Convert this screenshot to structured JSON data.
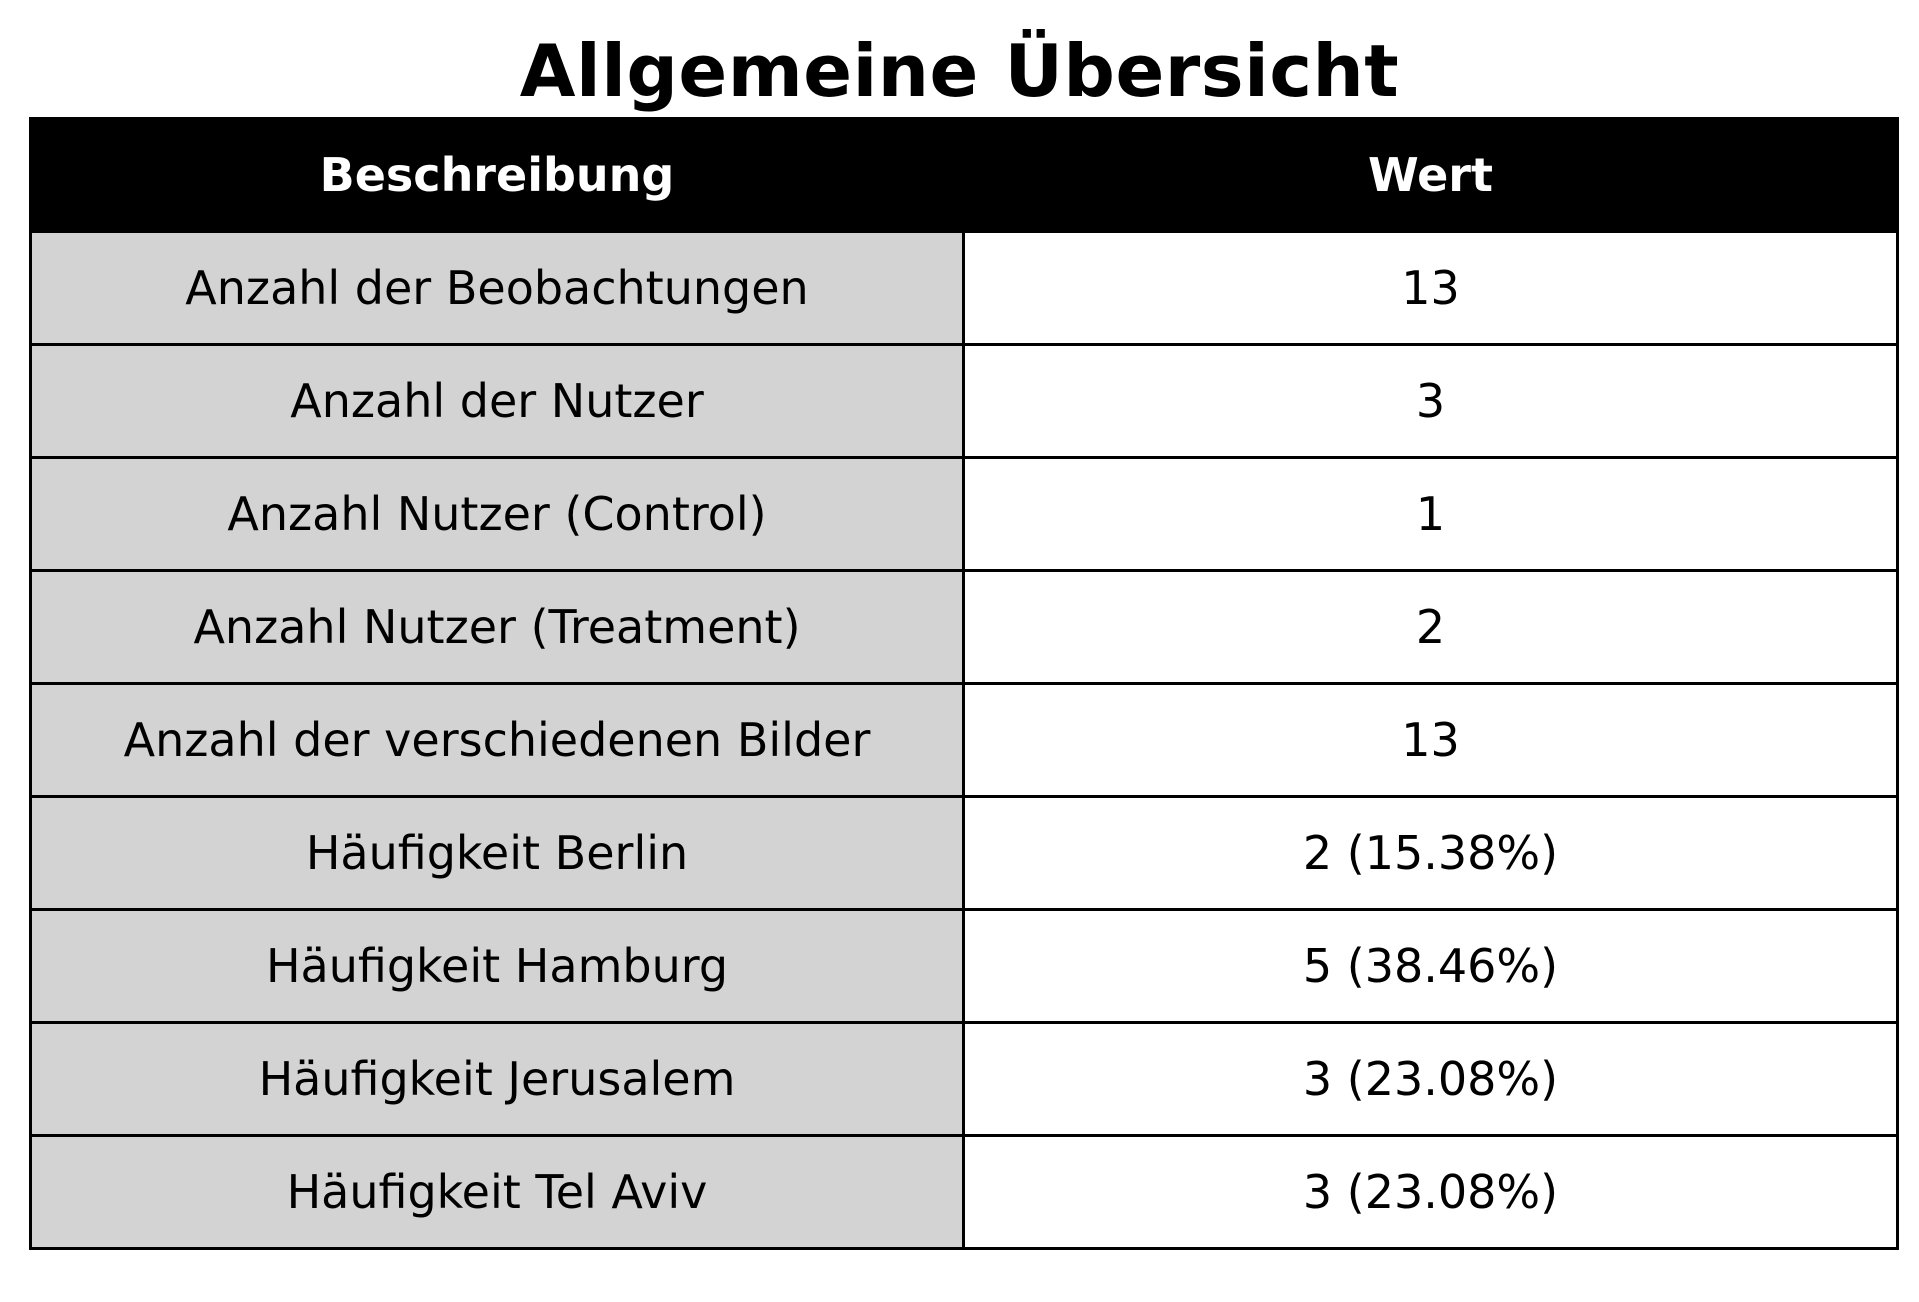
{
  "chart_data": {
    "type": "table",
    "title": "Allgemeine Übersicht",
    "columns": [
      "Beschreibung",
      "Wert"
    ],
    "rows": [
      {
        "label": "Anzahl der Beobachtungen",
        "value": "13"
      },
      {
        "label": "Anzahl der Nutzer",
        "value": "3"
      },
      {
        "label": "Anzahl Nutzer (Control)",
        "value": "1"
      },
      {
        "label": "Anzahl Nutzer (Treatment)",
        "value": "2"
      },
      {
        "label": "Anzahl der verschiedenen Bilder",
        "value": "13"
      },
      {
        "label": "Häufigkeit Berlin",
        "value": "2 (15.38%)"
      },
      {
        "label": "Häufigkeit Hamburg",
        "value": "5 (38.46%)"
      },
      {
        "label": "Häufigkeit Jerusalem",
        "value": "3 (23.08%)"
      },
      {
        "label": "Häufigkeit Tel Aviv",
        "value": "3 (23.08%)"
      }
    ]
  },
  "colors": {
    "header_background": "#000000",
    "header_text": "#ffffff",
    "label_cell_background": "#d3d3d3",
    "value_cell_background": "#ffffff",
    "border": "#000000"
  }
}
